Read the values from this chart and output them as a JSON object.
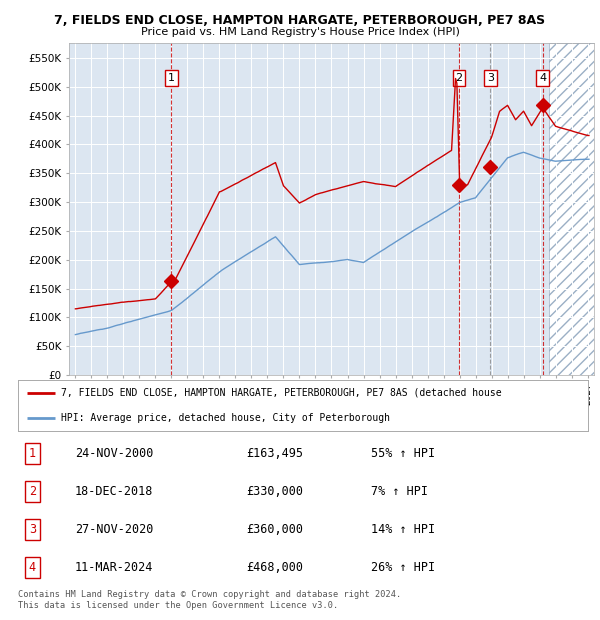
{
  "title": "7, FIELDS END CLOSE, HAMPTON HARGATE, PETERBOROUGH, PE7 8AS",
  "subtitle": "Price paid vs. HM Land Registry's House Price Index (HPI)",
  "sale_dates_num": [
    2001.0,
    2018.96,
    2020.92,
    2024.19
  ],
  "sale_prices": [
    163495,
    330000,
    360000,
    468000
  ],
  "sale_labels": [
    "1",
    "2",
    "3",
    "4"
  ],
  "sale_vline_styles": [
    "red_dashed",
    "red_dashed",
    "gray_dashed",
    "red_dashed"
  ],
  "sale_info": [
    {
      "num": "1",
      "date": "24-NOV-2000",
      "price": "£163,495",
      "pct": "55% ↑ HPI"
    },
    {
      "num": "2",
      "date": "18-DEC-2018",
      "price": "£330,000",
      "pct": "7% ↑ HPI"
    },
    {
      "num": "3",
      "date": "27-NOV-2020",
      "price": "£360,000",
      "pct": "14% ↑ HPI"
    },
    {
      "num": "4",
      "date": "11-MAR-2024",
      "price": "£468,000",
      "pct": "26% ↑ HPI"
    }
  ],
  "legend_line1": "7, FIELDS END CLOSE, HAMPTON HARGATE, PETERBOROUGH, PE7 8AS (detached house",
  "legend_line2": "HPI: Average price, detached house, City of Peterborough",
  "footer": "Contains HM Land Registry data © Crown copyright and database right 2024.\nThis data is licensed under the Open Government Licence v3.0.",
  "red_color": "#cc0000",
  "blue_color": "#6699cc",
  "bg_color": "#dce6f1",
  "ylim": [
    0,
    575000
  ],
  "yticks": [
    0,
    50000,
    100000,
    150000,
    200000,
    250000,
    300000,
    350000,
    400000,
    450000,
    500000,
    550000
  ],
  "xlim_start": 1994.6,
  "xlim_end": 2027.4,
  "hatch_start": 2024.6
}
